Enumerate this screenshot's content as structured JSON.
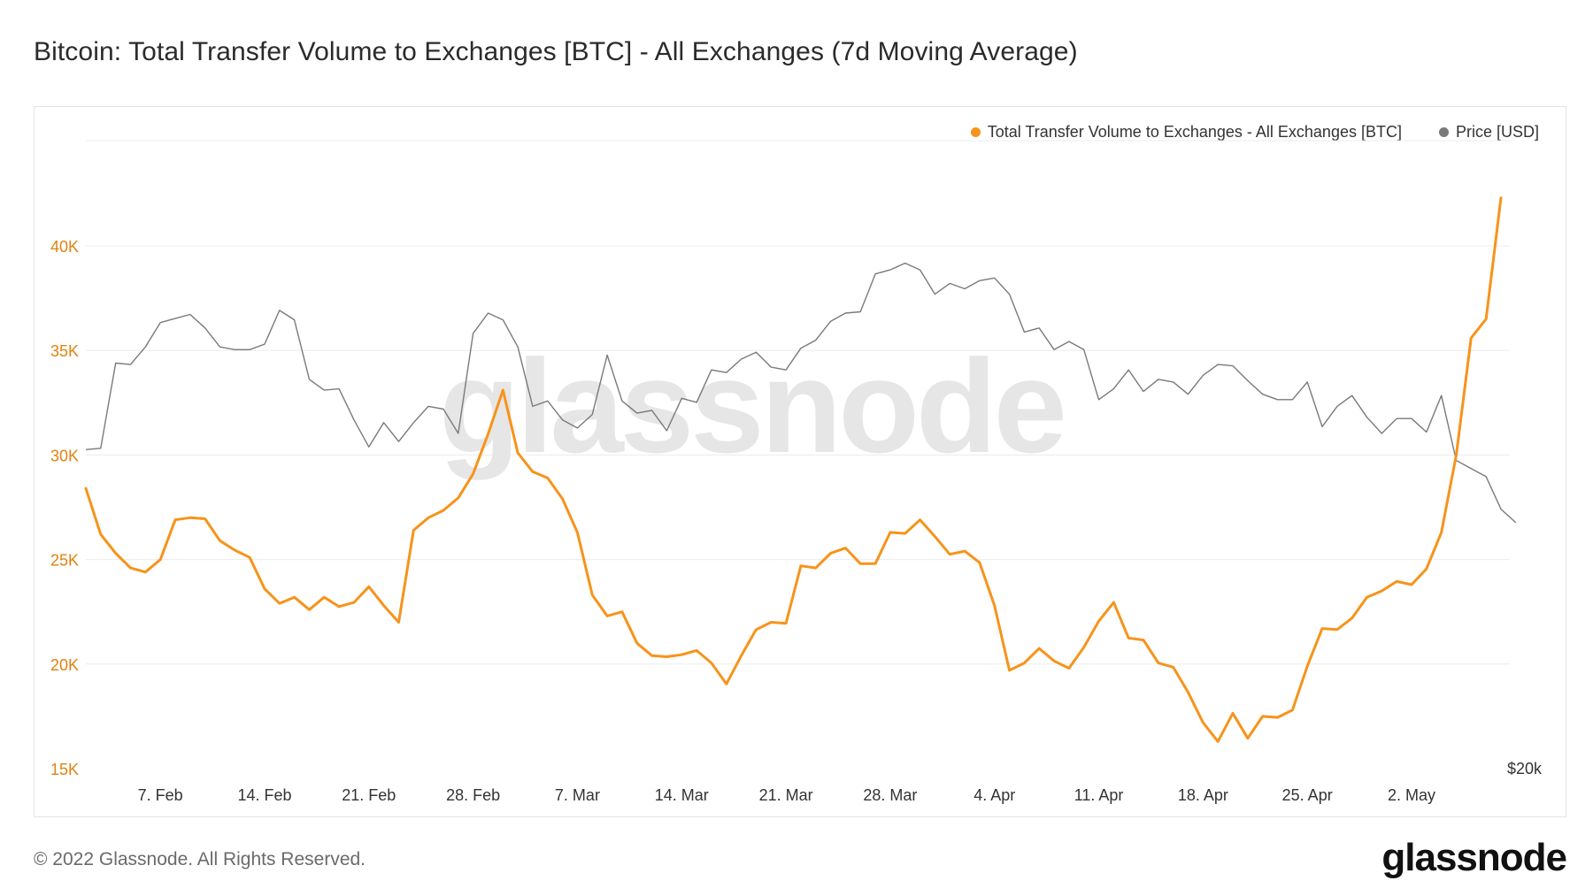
{
  "title": "Bitcoin: Total Transfer Volume to Exchanges [BTC] - All Exchanges (7d Moving Average)",
  "footer": "© 2022 Glassnode. All Rights Reserved.",
  "brand": "glassnode",
  "watermark": "glassnode",
  "colors": {
    "volume": "#f7931a",
    "price": "#7a7a7a",
    "grid": "#ececec",
    "axisText": "#333333",
    "leftAxisText": "#e0820f"
  },
  "chart_data": {
    "type": "line",
    "grid": true,
    "legend_position": "top-right",
    "x_tick_labels": [
      "7. Feb",
      "14. Feb",
      "21. Feb",
      "28. Feb",
      "7. Mar",
      "14. Mar",
      "21. Mar",
      "28. Mar",
      "4. Apr",
      "11. Apr",
      "18. Apr",
      "25. Apr",
      "2. May"
    ],
    "y_left": {
      "ticks": [
        "15K",
        "20K",
        "25K",
        "30K",
        "35K",
        "40K"
      ],
      "range": [
        15000,
        40000
      ]
    },
    "y_right": {
      "ticks": [
        "$20k"
      ]
    },
    "series": [
      {
        "name": "Total Transfer Volume to Exchanges - All Exchanges [BTC]",
        "axis": "left",
        "values": [
          28400,
          26200,
          25300,
          24600,
          24400,
          25000,
          26900,
          27000,
          26950,
          25900,
          25450,
          25100,
          23600,
          22900,
          23200,
          22600,
          23200,
          22750,
          22950,
          23700,
          22800,
          22000,
          26400,
          27000,
          27350,
          27950,
          29100,
          31000,
          33100,
          30100,
          29200,
          28900,
          27900,
          26300,
          23300,
          22300,
          22500,
          21000,
          20400,
          20350,
          20450,
          20650,
          20050,
          19050,
          20400,
          21650,
          22000,
          21950,
          24700,
          24600,
          25300,
          25550,
          24800,
          24800,
          26300,
          26250,
          26900,
          26100,
          25250,
          25400,
          24850,
          22800,
          19700,
          20050,
          20750,
          20150,
          19800,
          20800,
          22050,
          22950,
          21250,
          21150,
          20050,
          19850,
          18650,
          17200,
          16300,
          17650,
          16450,
          17500,
          17450,
          17800,
          19900,
          21700,
          21650,
          22200,
          23200,
          23500,
          23950,
          23800,
          24550,
          26300,
          30000,
          35600,
          36500,
          42300
        ]
      },
      {
        "name": "Price [USD]",
        "axis": "right",
        "values": [
          31800,
          31850,
          35000,
          34950,
          35600,
          36500,
          36650,
          36800,
          36300,
          35600,
          35500,
          35500,
          35700,
          36950,
          36600,
          34400,
          34000,
          34050,
          32900,
          31900,
          32800,
          32100,
          32800,
          33400,
          33300,
          32400,
          36100,
          36850,
          36600,
          35600,
          33400,
          33600,
          32900,
          32600,
          33100,
          35300,
          33600,
          33150,
          33250,
          32500,
          33700,
          33550,
          34750,
          34650,
          35150,
          35400,
          34850,
          34750,
          35550,
          35850,
          36550,
          36850,
          36900,
          38300,
          38450,
          38700,
          38450,
          37550,
          37950,
          37750,
          38050,
          38150,
          37550,
          36150,
          36300,
          35500,
          35800,
          35500,
          33650,
          34050,
          34750,
          33950,
          34400,
          34300,
          33850,
          34550,
          34950,
          34900,
          34350,
          33850,
          33650,
          33650,
          34300,
          32650,
          33400,
          33800,
          33000,
          32400,
          32950,
          32950,
          32450,
          33800,
          31400,
          31100,
          30800,
          29600,
          29100
        ]
      }
    ]
  }
}
